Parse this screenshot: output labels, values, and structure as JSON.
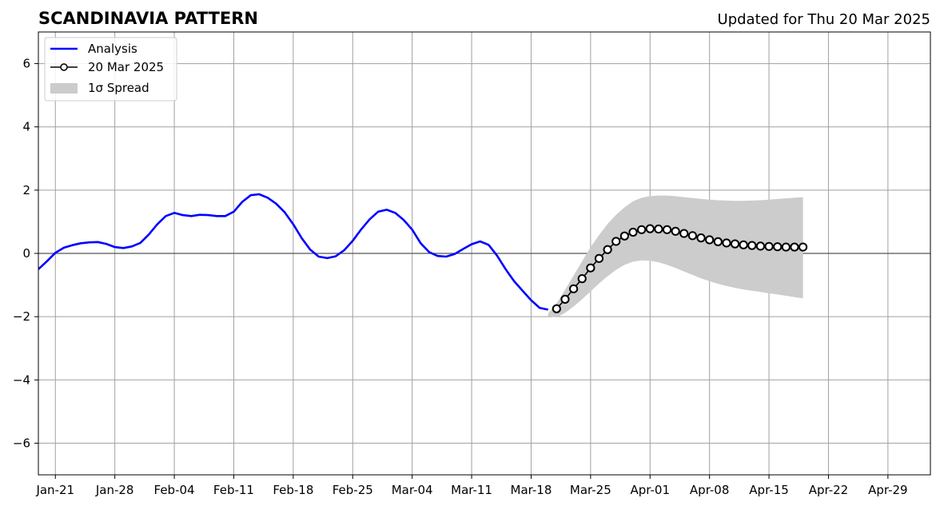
{
  "title": "SCANDINAVIA PATTERN",
  "subtitle": "Updated for Thu 20 Mar 2025",
  "colors": {
    "analysis": "#0000ff",
    "forecast_line": "#000000",
    "forecast_marker_fill": "#ffffff",
    "spread": "#cccccc",
    "grid": "#a0a0a0",
    "zero_line": "#555555"
  },
  "chart_data": {
    "type": "line",
    "x_start": "2025-01-19",
    "x_end": "2025-05-04",
    "ylim": [
      -7,
      7
    ],
    "yticks": [
      -6,
      -4,
      -2,
      0,
      2,
      4,
      6
    ],
    "ytick_labels": [
      "−6",
      "−4",
      "−2",
      "0",
      "2",
      "4",
      "6"
    ],
    "xticks": [
      {
        "date": "2025-01-21",
        "label": "Jan-21"
      },
      {
        "date": "2025-01-28",
        "label": "Jan-28"
      },
      {
        "date": "2025-02-04",
        "label": "Feb-04"
      },
      {
        "date": "2025-02-11",
        "label": "Feb-11"
      },
      {
        "date": "2025-02-18",
        "label": "Feb-18"
      },
      {
        "date": "2025-02-25",
        "label": "Feb-25"
      },
      {
        "date": "2025-03-04",
        "label": "Mar-04"
      },
      {
        "date": "2025-03-11",
        "label": "Mar-11"
      },
      {
        "date": "2025-03-18",
        "label": "Mar-18"
      },
      {
        "date": "2025-03-25",
        "label": "Mar-25"
      },
      {
        "date": "2025-04-01",
        "label": "Apr-01"
      },
      {
        "date": "2025-04-08",
        "label": "Apr-08"
      },
      {
        "date": "2025-04-15",
        "label": "Apr-15"
      },
      {
        "date": "2025-04-22",
        "label": "Apr-22"
      },
      {
        "date": "2025-04-29",
        "label": "Apr-29"
      }
    ],
    "grid": true,
    "legend_position": "top-left",
    "legend": [
      {
        "label": "Analysis",
        "kind": "line"
      },
      {
        "label": "20 Mar 2025",
        "kind": "marker-line"
      },
      {
        "label": "1σ Spread",
        "kind": "patch"
      }
    ],
    "series": [
      {
        "name": "Analysis",
        "points": [
          [
            "2025-01-19",
            -0.5
          ],
          [
            "2025-01-20",
            -0.25
          ],
          [
            "2025-01-21",
            0.02
          ],
          [
            "2025-01-22",
            0.18
          ],
          [
            "2025-01-23",
            0.26
          ],
          [
            "2025-01-24",
            0.32
          ],
          [
            "2025-01-25",
            0.35
          ],
          [
            "2025-01-26",
            0.36
          ],
          [
            "2025-01-27",
            0.3
          ],
          [
            "2025-01-28",
            0.2
          ],
          [
            "2025-01-29",
            0.17
          ],
          [
            "2025-01-30",
            0.22
          ],
          [
            "2025-01-31",
            0.33
          ],
          [
            "2025-02-01",
            0.6
          ],
          [
            "2025-02-02",
            0.92
          ],
          [
            "2025-02-03",
            1.18
          ],
          [
            "2025-02-04",
            1.28
          ],
          [
            "2025-02-05",
            1.21
          ],
          [
            "2025-02-06",
            1.18
          ],
          [
            "2025-02-07",
            1.22
          ],
          [
            "2025-02-08",
            1.21
          ],
          [
            "2025-02-09",
            1.18
          ],
          [
            "2025-02-10",
            1.18
          ],
          [
            "2025-02-11",
            1.32
          ],
          [
            "2025-02-12",
            1.63
          ],
          [
            "2025-02-13",
            1.84
          ],
          [
            "2025-02-14",
            1.87
          ],
          [
            "2025-02-15",
            1.76
          ],
          [
            "2025-02-16",
            1.57
          ],
          [
            "2025-02-17",
            1.3
          ],
          [
            "2025-02-18",
            0.92
          ],
          [
            "2025-02-19",
            0.48
          ],
          [
            "2025-02-20",
            0.12
          ],
          [
            "2025-02-21",
            -0.1
          ],
          [
            "2025-02-22",
            -0.15
          ],
          [
            "2025-02-23",
            -0.09
          ],
          [
            "2025-02-24",
            0.1
          ],
          [
            "2025-02-25",
            0.4
          ],
          [
            "2025-02-26",
            0.76
          ],
          [
            "2025-02-27",
            1.08
          ],
          [
            "2025-02-28",
            1.32
          ],
          [
            "2025-03-01",
            1.38
          ],
          [
            "2025-03-02",
            1.28
          ],
          [
            "2025-03-03",
            1.06
          ],
          [
            "2025-03-04",
            0.75
          ],
          [
            "2025-03-05",
            0.32
          ],
          [
            "2025-03-06",
            0.04
          ],
          [
            "2025-03-07",
            -0.08
          ],
          [
            "2025-03-08",
            -0.1
          ],
          [
            "2025-03-09",
            -0.02
          ],
          [
            "2025-03-10",
            0.14
          ],
          [
            "2025-03-11",
            0.29
          ],
          [
            "2025-03-12",
            0.38
          ],
          [
            "2025-03-13",
            0.27
          ],
          [
            "2025-03-14",
            -0.07
          ],
          [
            "2025-03-15",
            -0.5
          ],
          [
            "2025-03-16",
            -0.88
          ],
          [
            "2025-03-17",
            -1.18
          ],
          [
            "2025-03-18",
            -1.48
          ],
          [
            "2025-03-19",
            -1.72
          ],
          [
            "2025-03-20",
            -1.78
          ]
        ]
      },
      {
        "name": "20 Mar 2025",
        "points": [
          [
            "2025-03-21",
            -1.75
          ],
          [
            "2025-03-22",
            -1.45
          ],
          [
            "2025-03-23",
            -1.12
          ],
          [
            "2025-03-24",
            -0.8
          ],
          [
            "2025-03-25",
            -0.46
          ],
          [
            "2025-03-26",
            -0.16
          ],
          [
            "2025-03-27",
            0.12
          ],
          [
            "2025-03-28",
            0.38
          ],
          [
            "2025-03-29",
            0.55
          ],
          [
            "2025-03-30",
            0.67
          ],
          [
            "2025-03-31",
            0.75
          ],
          [
            "2025-04-01",
            0.78
          ],
          [
            "2025-04-02",
            0.77
          ],
          [
            "2025-04-03",
            0.75
          ],
          [
            "2025-04-04",
            0.7
          ],
          [
            "2025-04-05",
            0.63
          ],
          [
            "2025-04-06",
            0.56
          ],
          [
            "2025-04-07",
            0.49
          ],
          [
            "2025-04-08",
            0.43
          ],
          [
            "2025-04-09",
            0.37
          ],
          [
            "2025-04-10",
            0.33
          ],
          [
            "2025-04-11",
            0.3
          ],
          [
            "2025-04-12",
            0.27
          ],
          [
            "2025-04-13",
            0.25
          ],
          [
            "2025-04-14",
            0.23
          ],
          [
            "2025-04-15",
            0.22
          ],
          [
            "2025-04-16",
            0.21
          ],
          [
            "2025-04-17",
            0.2
          ],
          [
            "2025-04-18",
            0.2
          ],
          [
            "2025-04-19",
            0.2
          ]
        ]
      }
    ],
    "spread": {
      "name": "1σ Spread",
      "upper": [
        [
          "2025-03-20",
          -1.9
        ],
        [
          "2025-03-21",
          -1.58
        ],
        [
          "2025-03-22",
          -1.15
        ],
        [
          "2025-03-23",
          -0.7
        ],
        [
          "2025-03-24",
          -0.25
        ],
        [
          "2025-03-25",
          0.2
        ],
        [
          "2025-03-26",
          0.58
        ],
        [
          "2025-03-27",
          0.93
        ],
        [
          "2025-03-28",
          1.22
        ],
        [
          "2025-03-29",
          1.46
        ],
        [
          "2025-03-30",
          1.65
        ],
        [
          "2025-03-31",
          1.76
        ],
        [
          "2025-04-01",
          1.81
        ],
        [
          "2025-04-02",
          1.83
        ],
        [
          "2025-04-03",
          1.83
        ],
        [
          "2025-04-04",
          1.81
        ],
        [
          "2025-04-05",
          1.78
        ],
        [
          "2025-04-06",
          1.75
        ],
        [
          "2025-04-07",
          1.72
        ],
        [
          "2025-04-08",
          1.7
        ],
        [
          "2025-04-09",
          1.68
        ],
        [
          "2025-04-10",
          1.67
        ],
        [
          "2025-04-11",
          1.66
        ],
        [
          "2025-04-12",
          1.66
        ],
        [
          "2025-04-13",
          1.67
        ],
        [
          "2025-04-14",
          1.68
        ],
        [
          "2025-04-15",
          1.7
        ],
        [
          "2025-04-16",
          1.72
        ],
        [
          "2025-04-17",
          1.74
        ],
        [
          "2025-04-18",
          1.76
        ],
        [
          "2025-04-19",
          1.78
        ]
      ],
      "lower": [
        [
          "2025-03-20",
          -1.98
        ],
        [
          "2025-03-21",
          -2.03
        ],
        [
          "2025-03-22",
          -1.88
        ],
        [
          "2025-03-23",
          -1.68
        ],
        [
          "2025-03-24",
          -1.45
        ],
        [
          "2025-03-25",
          -1.2
        ],
        [
          "2025-03-26",
          -0.95
        ],
        [
          "2025-03-27",
          -0.72
        ],
        [
          "2025-03-28",
          -0.52
        ],
        [
          "2025-03-29",
          -0.36
        ],
        [
          "2025-03-30",
          -0.26
        ],
        [
          "2025-03-31",
          -0.22
        ],
        [
          "2025-04-01",
          -0.23
        ],
        [
          "2025-04-02",
          -0.28
        ],
        [
          "2025-04-03",
          -0.36
        ],
        [
          "2025-04-04",
          -0.46
        ],
        [
          "2025-04-05",
          -0.57
        ],
        [
          "2025-04-06",
          -0.68
        ],
        [
          "2025-04-07",
          -0.79
        ],
        [
          "2025-04-08",
          -0.88
        ],
        [
          "2025-04-09",
          -0.96
        ],
        [
          "2025-04-10",
          -1.03
        ],
        [
          "2025-04-11",
          -1.09
        ],
        [
          "2025-04-12",
          -1.14
        ],
        [
          "2025-04-13",
          -1.18
        ],
        [
          "2025-04-14",
          -1.22
        ],
        [
          "2025-04-15",
          -1.26
        ],
        [
          "2025-04-16",
          -1.3
        ],
        [
          "2025-04-17",
          -1.34
        ],
        [
          "2025-04-18",
          -1.38
        ],
        [
          "2025-04-19",
          -1.42
        ]
      ]
    }
  }
}
